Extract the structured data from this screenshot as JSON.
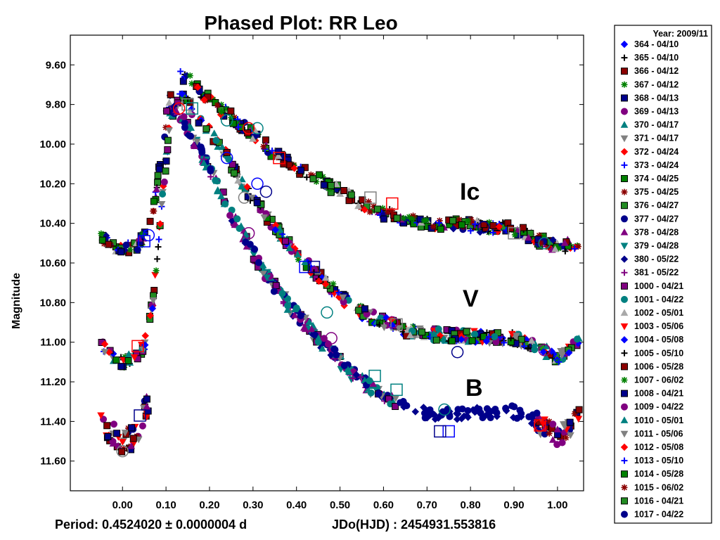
{
  "chart_data": {
    "type": "scatter",
    "title": "Phased Plot: RR Leo",
    "ylabel": "Magnitude",
    "xlabel": "",
    "footer_period": "Period: 0.4524020 ± 0.0000004 d",
    "footer_epoch": "JDo(HJD) : 2454931.553816",
    "x_ticks": [
      "0.00",
      "0.10",
      "0.20",
      "0.30",
      "0.40",
      "0.50",
      "0.60",
      "0.70",
      "0.80",
      "0.90",
      "1.00"
    ],
    "y_ticks": [
      "9.60",
      "9.80",
      "10.00",
      "10.20",
      "10.40",
      "10.60",
      "10.80",
      "11.00",
      "11.20",
      "11.40",
      "11.60"
    ],
    "xlim": [
      -0.12,
      1.06
    ],
    "ylim": [
      11.75,
      9.45
    ],
    "y_inverted": true,
    "grid": false,
    "legend_position": "right",
    "legend_title": "Year: 2009/11",
    "band_labels": [
      "Ic",
      "V",
      "B"
    ],
    "bands": {
      "Ic": {
        "curve": [
          [
            -0.05,
            10.48
          ],
          [
            0.0,
            10.53
          ],
          [
            0.03,
            10.52
          ],
          [
            0.05,
            10.47
          ],
          [
            0.07,
            10.35
          ],
          [
            0.09,
            10.05
          ],
          [
            0.11,
            9.75
          ],
          [
            0.13,
            9.65
          ],
          [
            0.15,
            9.67
          ],
          [
            0.2,
            9.78
          ],
          [
            0.25,
            9.86
          ],
          [
            0.3,
            9.95
          ],
          [
            0.35,
            10.05
          ],
          [
            0.4,
            10.12
          ],
          [
            0.45,
            10.18
          ],
          [
            0.5,
            10.24
          ],
          [
            0.55,
            10.3
          ],
          [
            0.6,
            10.35
          ],
          [
            0.65,
            10.38
          ],
          [
            0.7,
            10.4
          ],
          [
            0.8,
            10.41
          ],
          [
            0.9,
            10.43
          ],
          [
            0.95,
            10.48
          ],
          [
            1.0,
            10.52
          ],
          [
            1.05,
            10.5
          ]
        ]
      },
      "V": {
        "curve": [
          [
            -0.05,
            11.02
          ],
          [
            0.0,
            11.1
          ],
          [
            0.03,
            11.08
          ],
          [
            0.05,
            11.02
          ],
          [
            0.07,
            10.8
          ],
          [
            0.09,
            10.3
          ],
          [
            0.11,
            9.88
          ],
          [
            0.13,
            9.74
          ],
          [
            0.15,
            9.8
          ],
          [
            0.2,
            9.93
          ],
          [
            0.25,
            10.1
          ],
          [
            0.3,
            10.28
          ],
          [
            0.35,
            10.42
          ],
          [
            0.4,
            10.55
          ],
          [
            0.45,
            10.66
          ],
          [
            0.5,
            10.77
          ],
          [
            0.55,
            10.85
          ],
          [
            0.6,
            10.9
          ],
          [
            0.65,
            10.94
          ],
          [
            0.7,
            10.96
          ],
          [
            0.8,
            10.97
          ],
          [
            0.9,
            10.98
          ],
          [
            0.95,
            11.02
          ],
          [
            1.0,
            11.08
          ],
          [
            1.05,
            11.0
          ]
        ]
      },
      "B": {
        "curve": [
          [
            -0.05,
            11.4
          ],
          [
            0.0,
            11.5
          ],
          [
            0.03,
            11.48
          ],
          [
            0.05,
            11.35
          ],
          [
            0.06,
            11.3
          ]
        ],
        "curve2": [
          [
            0.1,
            9.82
          ],
          [
            0.13,
            9.84
          ],
          [
            0.15,
            9.92
          ],
          [
            0.2,
            10.12
          ],
          [
            0.25,
            10.35
          ],
          [
            0.3,
            10.55
          ],
          [
            0.35,
            10.72
          ],
          [
            0.4,
            10.86
          ],
          [
            0.45,
            10.98
          ],
          [
            0.5,
            11.1
          ],
          [
            0.55,
            11.2
          ],
          [
            0.6,
            11.27
          ],
          [
            0.65,
            11.33
          ],
          [
            0.7,
            11.36
          ],
          [
            0.8,
            11.36
          ],
          [
            0.9,
            11.35
          ],
          [
            0.95,
            11.4
          ],
          [
            1.0,
            11.48
          ],
          [
            1.05,
            11.38
          ]
        ]
      }
    },
    "series": [
      {
        "name": "364 - 04/10",
        "marker": "diamond",
        "color": "#0000ff",
        "fill": true
      },
      {
        "name": "365 - 04/10",
        "marker": "plus",
        "color": "#000000",
        "fill": true
      },
      {
        "name": "366 - 04/12",
        "marker": "square",
        "color": "#8b0000",
        "fill": true
      },
      {
        "name": "367 - 04/12",
        "marker": "asterisk",
        "color": "#008000",
        "fill": true
      },
      {
        "name": "368 - 04/13",
        "marker": "square",
        "color": "#00008b",
        "fill": true
      },
      {
        "name": "369 - 04/13",
        "marker": "circle",
        "color": "#800080",
        "fill": true
      },
      {
        "name": "370 - 04/17",
        "marker": "triangle",
        "color": "#008080",
        "fill": true
      },
      {
        "name": "371 - 04/17",
        "marker": "tridown",
        "color": "#808080",
        "fill": true
      },
      {
        "name": "372 - 04/24",
        "marker": "diamond",
        "color": "#ff0000",
        "fill": true
      },
      {
        "name": "373 - 04/24",
        "marker": "plus",
        "color": "#0000ff",
        "fill": true
      },
      {
        "name": "374 - 04/25",
        "marker": "square",
        "color": "#008000",
        "fill": true
      },
      {
        "name": "375 - 04/25",
        "marker": "asterisk",
        "color": "#8b0000",
        "fill": true
      },
      {
        "name": "376 - 04/27",
        "marker": "square",
        "color": "#228b22",
        "fill": true
      },
      {
        "name": "377 - 04/27",
        "marker": "circle",
        "color": "#00008b",
        "fill": true
      },
      {
        "name": "378 - 04/28",
        "marker": "triangle",
        "color": "#800080",
        "fill": true
      },
      {
        "name": "379 - 04/28",
        "marker": "tridown",
        "color": "#008080",
        "fill": true
      },
      {
        "name": "380 - 05/22",
        "marker": "diamond",
        "color": "#00008b",
        "fill": true
      },
      {
        "name": "381 - 05/22",
        "marker": "plus",
        "color": "#800080",
        "fill": true
      },
      {
        "name": "1000 - 04/21",
        "marker": "square",
        "color": "#800080",
        "fill": true
      },
      {
        "name": "1001 - 04/22",
        "marker": "circle",
        "color": "#008080",
        "fill": true
      },
      {
        "name": "1002 - 05/01",
        "marker": "triangle",
        "color": "#a9a9a9",
        "fill": true
      },
      {
        "name": "1003 - 05/06",
        "marker": "tridown",
        "color": "#ff0000",
        "fill": true
      },
      {
        "name": "1004 - 05/08",
        "marker": "diamond",
        "color": "#0000ff",
        "fill": true
      },
      {
        "name": "1005 - 05/10",
        "marker": "plus",
        "color": "#000000",
        "fill": true
      },
      {
        "name": "1006 - 05/28",
        "marker": "square",
        "color": "#8b0000",
        "fill": true
      },
      {
        "name": "1007 - 06/02",
        "marker": "asterisk",
        "color": "#008000",
        "fill": true
      },
      {
        "name": "1008 - 04/21",
        "marker": "square",
        "color": "#00008b",
        "fill": true
      },
      {
        "name": "1009 - 04/22",
        "marker": "circle",
        "color": "#800080",
        "fill": true
      },
      {
        "name": "1010 - 05/01",
        "marker": "triangle",
        "color": "#008080",
        "fill": true
      },
      {
        "name": "1011 - 05/06",
        "marker": "tridown",
        "color": "#808080",
        "fill": true
      },
      {
        "name": "1012 - 05/08",
        "marker": "diamond",
        "color": "#ff0000",
        "fill": true
      },
      {
        "name": "1013 - 05/10",
        "marker": "plus",
        "color": "#0000ff",
        "fill": true
      },
      {
        "name": "1014 - 05/28",
        "marker": "square",
        "color": "#008000",
        "fill": true
      },
      {
        "name": "1015 - 06/02",
        "marker": "asterisk",
        "color": "#8b0000",
        "fill": true
      },
      {
        "name": "1016 - 04/21",
        "marker": "square",
        "color": "#228b22",
        "fill": true
      },
      {
        "name": "1017 - 04/22",
        "marker": "circle",
        "color": "#00008b",
        "fill": true
      }
    ],
    "open_markers": [
      {
        "marker": "square",
        "color": "#ff0000",
        "points": [
          [
            0.035,
            11.02
          ],
          [
            0.36,
            10.07
          ],
          [
            0.62,
            10.3
          ],
          [
            0.96,
            11.42
          ]
        ]
      },
      {
        "marker": "square",
        "color": "#0000ff",
        "points": [
          [
            0.05,
            10.49
          ],
          [
            0.42,
            10.62
          ],
          [
            0.75,
            11.45
          ]
        ]
      },
      {
        "marker": "square",
        "color": "#808080",
        "points": [
          [
            0.15,
            9.8
          ],
          [
            0.57,
            10.27
          ],
          [
            0.63,
            10.91
          ],
          [
            0.9,
            10.45
          ]
        ]
      },
      {
        "marker": "square",
        "color": "#008080",
        "points": [
          [
            0.16,
            9.82
          ],
          [
            0.58,
            11.17
          ],
          [
            0.63,
            11.24
          ]
        ]
      },
      {
        "marker": "square",
        "color": "#00008b",
        "points": [
          [
            0.04,
            11.37
          ],
          [
            0.44,
            10.62
          ],
          [
            0.73,
            11.45
          ]
        ]
      },
      {
        "marker": "circle",
        "color": "#ff0000",
        "points": [
          [
            0.13,
            9.82
          ],
          [
            0.29,
            9.92
          ],
          [
            0.96,
            11.42
          ]
        ]
      },
      {
        "marker": "circle",
        "color": "#0000ff",
        "points": [
          [
            0.06,
            10.46
          ],
          [
            0.24,
            10.07
          ],
          [
            0.31,
            10.2
          ]
        ]
      },
      {
        "marker": "circle",
        "color": "#008080",
        "points": [
          [
            0.24,
            9.88
          ],
          [
            0.31,
            9.92
          ],
          [
            0.47,
            10.85
          ],
          [
            0.74,
            11.34
          ],
          [
            0.97,
            10.5
          ]
        ]
      },
      {
        "marker": "circle",
        "color": "#800080",
        "points": [
          [
            0.29,
            10.45
          ],
          [
            0.48,
            10.98
          ],
          [
            0.62,
            10.9
          ],
          [
            0.97,
            11.04
          ]
        ]
      },
      {
        "marker": "circle",
        "color": "#00008b",
        "points": [
          [
            0.33,
            10.24
          ],
          [
            0.77,
            11.05
          ],
          [
            0.83,
            10.42
          ]
        ]
      },
      {
        "marker": "circle",
        "color": "#808080",
        "points": [
          [
            0.0,
            11.55
          ],
          [
            0.28,
            10.27
          ]
        ]
      }
    ]
  }
}
